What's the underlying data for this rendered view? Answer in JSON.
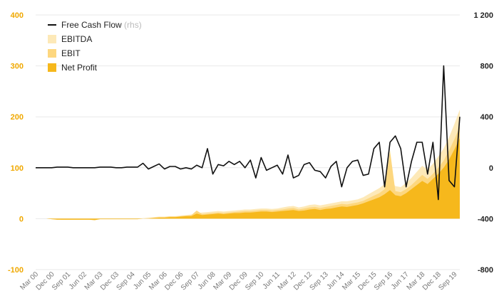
{
  "chart_data": {
    "type": "area",
    "title": "",
    "xlabel": "",
    "ylabel_left": "",
    "ylabel_right": "",
    "ylim_left": [
      -100,
      400
    ],
    "ylim_right": [
      -800,
      1200
    ],
    "yticks_left": [
      "400",
      "300",
      "200",
      "100",
      "0",
      "-100"
    ],
    "yticks_left_values": [
      400,
      300,
      200,
      100,
      0,
      -100
    ],
    "yticks_right": [
      "1 200",
      "800",
      "400",
      "0",
      "-400",
      "-800"
    ],
    "yticks_right_values": [
      1200,
      800,
      400,
      0,
      -400,
      -800
    ],
    "x_tick_labels": [
      "Mar 00",
      "Dec 00",
      "Sep 01",
      "Jun 02",
      "Mar 03",
      "Dec 03",
      "Sep 04",
      "Jun 05",
      "Mar 06",
      "Dec 06",
      "Sep 07",
      "Jun 08",
      "Mar 09",
      "Dec 09",
      "Sep 10",
      "Jun 11",
      "Mar 12",
      "Dec 12",
      "Sep 13",
      "Jun 14",
      "Mar 15",
      "Dec 15",
      "Sep 16",
      "Jun 17",
      "Mar 18",
      "Dec 18",
      "Sep 19"
    ],
    "x_tick_index": [
      0,
      3,
      6,
      9,
      12,
      15,
      18,
      21,
      24,
      27,
      30,
      33,
      36,
      39,
      42,
      45,
      48,
      51,
      54,
      57,
      60,
      63,
      66,
      69,
      72,
      75,
      78
    ],
    "grid": true,
    "legend_position": "top-left",
    "legend": [
      {
        "label": "Free Cash Flow",
        "suffix": "(rhs)",
        "kind": "line",
        "color": "#111111"
      },
      {
        "label": "EBITDA",
        "kind": "area",
        "color": "#fde9b8"
      },
      {
        "label": "EBIT",
        "kind": "area",
        "color": "#fdd77f"
      },
      {
        "label": "Net Profit",
        "kind": "area",
        "color": "#f6b81c"
      }
    ],
    "series": [
      {
        "name": "EBITDA",
        "axis": "left",
        "color": "#fde9b8",
        "values": [
          0,
          0,
          0,
          -1,
          -1,
          -1,
          -1,
          -1,
          -1,
          -1,
          -1,
          -1,
          0,
          0,
          0,
          0,
          0,
          0,
          0,
          0,
          1,
          2,
          3,
          4,
          4,
          5,
          5,
          6,
          7,
          8,
          11,
          12,
          13,
          14,
          15,
          14,
          15,
          16,
          17,
          18,
          18,
          19,
          20,
          20,
          19,
          20,
          22,
          24,
          25,
          22,
          24,
          27,
          28,
          26,
          28,
          30,
          32,
          34,
          34,
          36,
          38,
          42,
          48,
          54,
          60,
          68,
          76,
          64,
          62,
          70,
          80,
          92,
          104,
          96,
          108,
          122,
          138,
          160,
          186,
          214
        ]
      },
      {
        "name": "EBIT",
        "axis": "left",
        "color": "#fdd77f",
        "values": [
          0,
          0,
          0,
          -1,
          -1,
          -2,
          -2,
          -2,
          -2,
          -2,
          -2,
          -2,
          -1,
          -1,
          -1,
          -1,
          -1,
          -1,
          -1,
          -1,
          0,
          1,
          2,
          3,
          3,
          4,
          4,
          5,
          6,
          7,
          16,
          9,
          10,
          11,
          12,
          11,
          12,
          13,
          14,
          15,
          15,
          16,
          17,
          17,
          16,
          17,
          18,
          20,
          21,
          18,
          20,
          22,
          23,
          21,
          23,
          25,
          27,
          29,
          28,
          30,
          32,
          35,
          40,
          45,
          50,
          58,
          134,
          54,
          52,
          58,
          66,
          76,
          86,
          78,
          88,
          100,
          114,
          134,
          156,
          180
        ]
      },
      {
        "name": "Net Profit",
        "axis": "left",
        "color": "#f6b81c",
        "values": [
          0,
          0,
          0,
          -1,
          -2,
          -2,
          -2,
          -2,
          -2,
          -2,
          -2,
          -3,
          -1,
          -1,
          -1,
          -1,
          -1,
          -1,
          -1,
          -1,
          0,
          0,
          1,
          2,
          2,
          3,
          3,
          4,
          5,
          5,
          10,
          7,
          8,
          9,
          10,
          9,
          10,
          11,
          11,
          12,
          12,
          13,
          14,
          14,
          13,
          14,
          15,
          16,
          17,
          15,
          16,
          18,
          19,
          17,
          19,
          20,
          22,
          24,
          23,
          25,
          27,
          30,
          34,
          38,
          42,
          48,
          56,
          46,
          44,
          50,
          58,
          66,
          74,
          68,
          78,
          88,
          100,
          116,
          136,
          158
        ]
      },
      {
        "name": "Free Cash Flow",
        "axis": "right",
        "color": "#111111",
        "values": [
          0,
          0,
          0,
          0,
          5,
          5,
          5,
          0,
          0,
          0,
          0,
          0,
          5,
          5,
          5,
          0,
          0,
          5,
          5,
          5,
          35,
          -10,
          10,
          30,
          -10,
          10,
          10,
          -10,
          0,
          -10,
          20,
          0,
          150,
          -50,
          25,
          15,
          50,
          25,
          50,
          0,
          60,
          -80,
          80,
          -20,
          0,
          20,
          -50,
          100,
          -80,
          -60,
          25,
          40,
          -20,
          -30,
          -80,
          10,
          50,
          -150,
          0,
          50,
          60,
          -60,
          -50,
          150,
          200,
          -150,
          200,
          250,
          150,
          -150,
          50,
          200,
          200,
          -50,
          200,
          -250,
          800,
          -100,
          -150,
          400
        ]
      }
    ]
  }
}
